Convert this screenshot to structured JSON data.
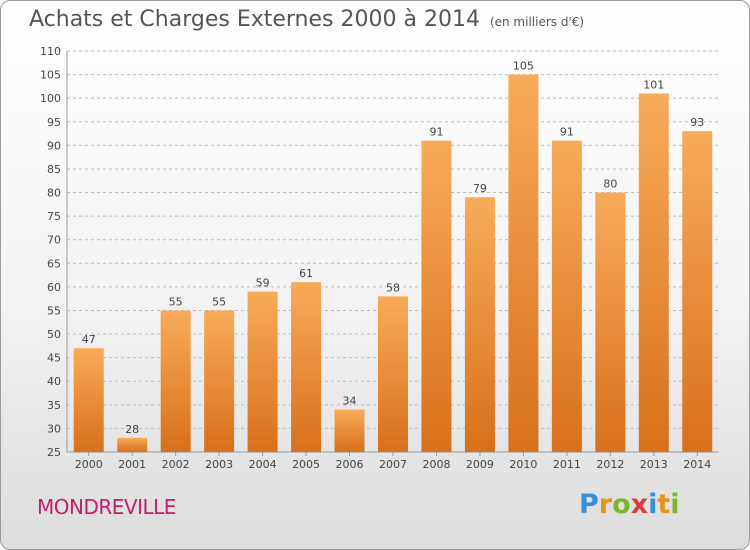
{
  "title": "Achats et Charges Externes 2000 à 2014",
  "subtitle": "(en milliers d'€)",
  "town": "MONDREVILLE",
  "logo": {
    "text": "Proxiti",
    "letters": [
      "P",
      "r",
      "o",
      "x",
      "i",
      "t",
      "i"
    ],
    "colors": [
      "#3a8fd6",
      "#e89418",
      "#7ab828",
      "#e03a3a",
      "#3a8fd6",
      "#e89418",
      "#7ab828"
    ]
  },
  "colors": {
    "bar_light": "#f8ab5a",
    "bar_dark": "#d8701a",
    "grid": "#bbbbbb",
    "text": "#444444",
    "accent": "#c0206e"
  },
  "chart_data": {
    "type": "bar",
    "categories": [
      "2000",
      "2001",
      "2002",
      "2003",
      "2004",
      "2005",
      "2006",
      "2007",
      "2008",
      "2009",
      "2010",
      "2011",
      "2012",
      "2013",
      "2014"
    ],
    "values": [
      47,
      28,
      55,
      55,
      59,
      61,
      34,
      58,
      91,
      79,
      105,
      91,
      80,
      101,
      93
    ],
    "ylim": [
      25,
      110
    ],
    "yticks": [
      25,
      30,
      35,
      40,
      45,
      50,
      55,
      60,
      65,
      70,
      75,
      80,
      85,
      90,
      95,
      100,
      105,
      110
    ],
    "grid": true,
    "legend": "none"
  }
}
